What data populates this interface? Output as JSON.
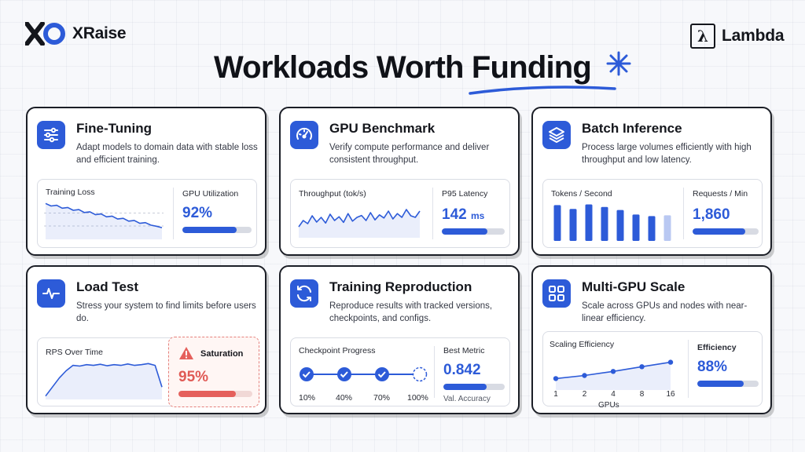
{
  "brand_left": {
    "name": "XRaise"
  },
  "brand_right": {
    "name": "Lambda",
    "mark": "λ"
  },
  "headline": {
    "text": "Workloads Worth ",
    "accent": "Funding"
  },
  "colors": {
    "accent": "#2d5bd8",
    "danger": "#e5605c",
    "border": "#1b1e26"
  },
  "cards": {
    "fine_tuning": {
      "icon": "sliders-icon",
      "title": "Fine-Tuning",
      "desc": "Adapt models to domain data with stable loss and efficient training.",
      "chart_label": "Training Loss",
      "metric_label": "GPU Utilization",
      "metric_value": "92%",
      "progress": 0.78
    },
    "gpu_benchmark": {
      "icon": "speedometer-icon",
      "title": "GPU Benchmark",
      "desc": "Verify compute performance and deliver consistent throughput.",
      "chart_label": "Throughput (tok/s)",
      "metric_label": "P95 Latency",
      "metric_value": "142",
      "metric_unit": "ms",
      "progress": 0.72
    },
    "batch_inference": {
      "icon": "layers-icon",
      "title": "Batch Inference",
      "desc": "Process large volumes efficiently with high throughput and low latency.",
      "chart_label": "Tokens / Second",
      "metric_label": "Requests / Min",
      "metric_value": "1,860",
      "progress": 0.8
    },
    "load_test": {
      "icon": "pulse-icon",
      "title": "Load Test",
      "desc": "Stress your system to find limits before users do.",
      "chart_label": "RPS Over Time",
      "metric_label": "Saturation",
      "metric_value": "95%",
      "progress": 0.78
    },
    "training_reproduction": {
      "icon": "refresh-icon",
      "title": "Training Reproduction",
      "desc": "Reproduce results with tracked versions, checkpoints, and configs.",
      "chart_label": "Checkpoint Progress",
      "checkpoints": [
        "10%",
        "40%",
        "70%",
        "100%"
      ],
      "metric_label": "Best Metric",
      "metric_value": "0.842",
      "metric_note": "Val. Accuracy",
      "progress": 0.7
    },
    "multi_gpu_scale": {
      "icon": "grid-icon",
      "title": "Multi-GPU Scale",
      "desc": "Scale across GPUs and nodes with near-linear efficiency.",
      "chart_label": "Scaling Efficiency",
      "x_ticks": [
        "1",
        "2",
        "4",
        "8",
        "16"
      ],
      "x_label": "GPUs",
      "metric_label": "Efficiency",
      "metric_value": "88%",
      "progress": 0.75
    }
  },
  "chart_data": [
    {
      "type": "line",
      "title": "Training Loss",
      "values": [
        0.95,
        0.88,
        0.9,
        0.82,
        0.84,
        0.76,
        0.78,
        0.7,
        0.72,
        0.64,
        0.66,
        0.58,
        0.6,
        0.52,
        0.54,
        0.46,
        0.48,
        0.4,
        0.42,
        0.35,
        0.32,
        0.28
      ]
    },
    {
      "type": "line",
      "title": "Throughput (tok/s)",
      "values": [
        0.3,
        0.5,
        0.4,
        0.65,
        0.45,
        0.6,
        0.42,
        0.7,
        0.5,
        0.62,
        0.44,
        0.72,
        0.48,
        0.6,
        0.66,
        0.5,
        0.75,
        0.52,
        0.68,
        0.58,
        0.8,
        0.55,
        0.72,
        0.6,
        0.85,
        0.65,
        0.6,
        0.8
      ]
    },
    {
      "type": "bar",
      "title": "Tokens / Second",
      "values": [
        0.95,
        0.85,
        0.97,
        0.9,
        0.82,
        0.7,
        0.66,
        0.68
      ]
    },
    {
      "type": "line",
      "title": "RPS Over Time",
      "values": [
        0.05,
        0.3,
        0.55,
        0.75,
        0.9,
        0.88,
        0.92,
        0.9,
        0.93,
        0.89,
        0.92,
        0.9,
        0.94,
        0.9,
        0.92,
        0.95,
        0.9,
        0.3
      ]
    },
    {
      "type": "line",
      "title": "Scaling Efficiency",
      "x": [
        "1",
        "2",
        "4",
        "8",
        "16"
      ],
      "values": [
        0.1,
        0.25,
        0.45,
        0.68,
        0.9
      ],
      "xlabel": "GPUs"
    }
  ]
}
